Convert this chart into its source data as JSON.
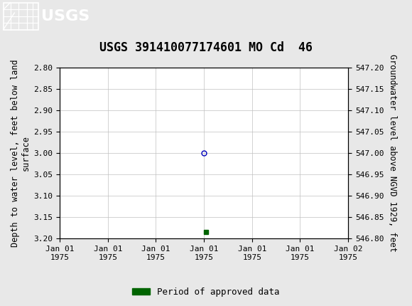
{
  "title": "USGS 391410077174601 MO Cd  46",
  "ylabel_left": "Depth to water level, feet below land\nsurface",
  "ylabel_right": "Groundwater level above NGVD 1929, feet",
  "ylim_left_top": 2.8,
  "ylim_left_bottom": 3.2,
  "ylim_right_top": 547.2,
  "ylim_right_bottom": 546.8,
  "left_yticks": [
    2.8,
    2.85,
    2.9,
    2.95,
    3.0,
    3.05,
    3.1,
    3.15,
    3.2
  ],
  "right_yticks": [
    547.2,
    547.15,
    547.1,
    547.05,
    547.0,
    546.95,
    546.9,
    546.85,
    546.8
  ],
  "left_ytick_labels": [
    "2.80",
    "2.85",
    "2.90",
    "2.95",
    "3.00",
    "3.05",
    "3.10",
    "3.15",
    "3.20"
  ],
  "right_ytick_labels": [
    "547.20",
    "547.15",
    "547.10",
    "547.05",
    "547.00",
    "546.95",
    "546.90",
    "546.85",
    "546.80"
  ],
  "xtick_positions": [
    0,
    1,
    2,
    3,
    4,
    5,
    6
  ],
  "xtick_labels": [
    "Jan 01\n1975",
    "Jan 01\n1975",
    "Jan 01\n1975",
    "Jan 01\n1975",
    "Jan 01\n1975",
    "Jan 01\n1975",
    "Jan 02\n1975"
  ],
  "data_point_x": 3.0,
  "data_point_y": 3.0,
  "data_point_color": "#0000bb",
  "green_bar_x": 3.05,
  "green_bar_y": 3.185,
  "green_rect_color": "#006400",
  "legend_label": "Period of approved data",
  "header_color": "#1b6b3a",
  "bg_color": "#e8e8e8",
  "plot_bg_color": "#ffffff",
  "grid_color": "#c0c0c0",
  "font_color": "#000000",
  "title_fontsize": 12,
  "axis_label_fontsize": 8.5,
  "tick_fontsize": 8,
  "legend_fontsize": 9
}
